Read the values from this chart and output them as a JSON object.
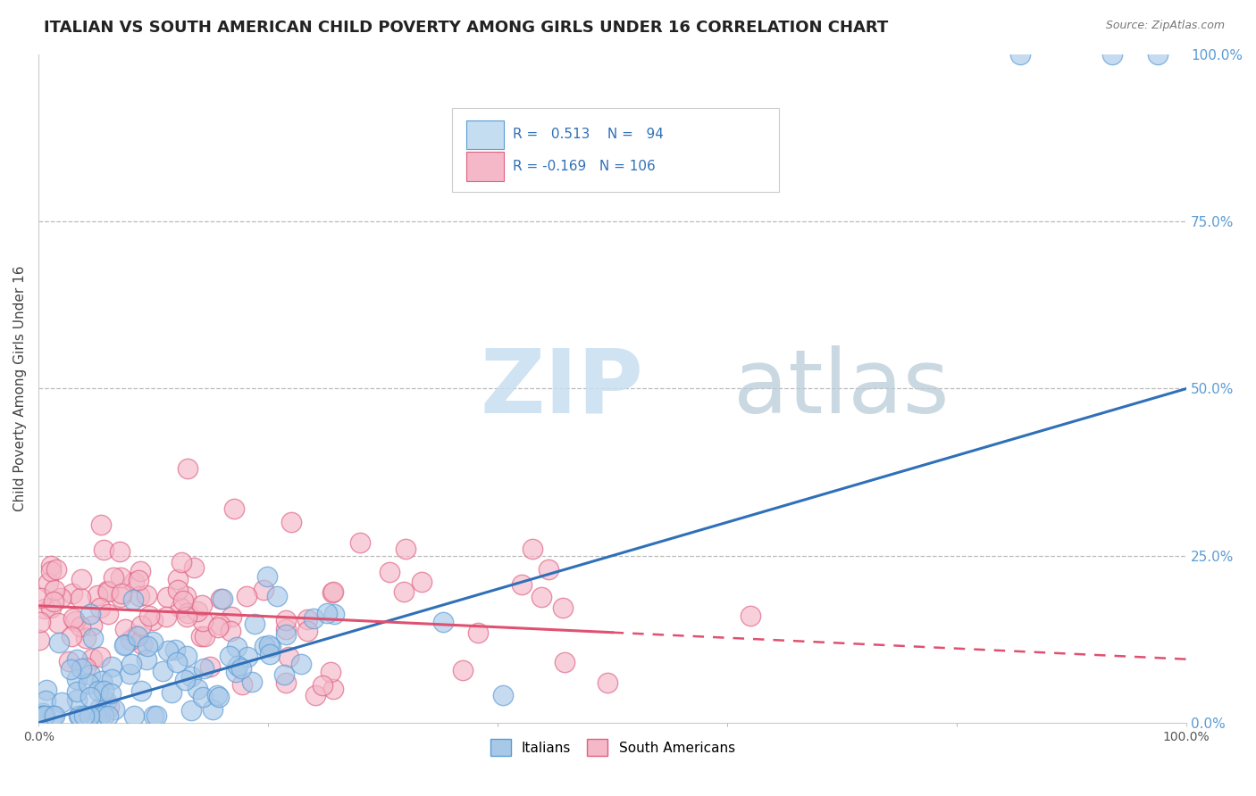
{
  "title": "ITALIAN VS SOUTH AMERICAN CHILD POVERTY AMONG GIRLS UNDER 16 CORRELATION CHART",
  "source": "Source: ZipAtlas.com",
  "ylabel": "Child Poverty Among Girls Under 16",
  "xlim": [
    0,
    1.0
  ],
  "ylim": [
    0,
    1.0
  ],
  "xtick_labels": [
    "0.0%",
    "100.0%"
  ],
  "ytick_labels": [
    "0.0%",
    "25.0%",
    "50.0%",
    "75.0%",
    "100.0%"
  ],
  "ytick_values": [
    0.0,
    0.25,
    0.5,
    0.75,
    1.0
  ],
  "xtick_values": [
    0.0,
    1.0
  ],
  "italians_R": 0.513,
  "italians_N": 94,
  "south_americans_R": -0.169,
  "south_americans_N": 106,
  "blue_scatter_color": "#a8c8e8",
  "blue_scatter_edge": "#5b9bd5",
  "pink_scatter_color": "#f4b8c8",
  "pink_scatter_edge": "#e06080",
  "blue_line_color": "#3070b8",
  "pink_line_color": "#e05070",
  "legend_box_blue": "#c5ddf0",
  "legend_box_pink": "#f4b8c8",
  "title_color": "#222222",
  "source_color": "#777777",
  "grid_color": "#bbbbbb",
  "right_tick_color": "#5b9bd5",
  "background_color": "#ffffff",
  "watermark_zip_color": "#d8e8f0",
  "watermark_atlas_color": "#d0d8e0"
}
